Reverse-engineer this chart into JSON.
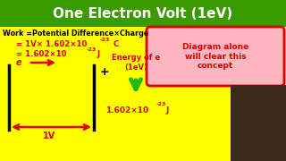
{
  "title": "One Electron Volt (1eV)",
  "title_bg": "#3a9a00",
  "title_color": "white",
  "body_bg": "#ffff00",
  "line1": "Work =Potential Difference×Charge",
  "line2_base": "= 1V× 1.602×10",
  "line2_exp": "-23",
  "line2_end": " C",
  "line3_base": "= 1.602×10",
  "line3_exp": "-23",
  "line3_end": "J",
  "label_e": "e",
  "label_energy": "Energy of e\n(1eV)",
  "label_1v": "1V",
  "label_joule_base": "1.602×10",
  "label_joule_exp": "-23",
  "label_joule_end": "J",
  "box_text": "Diagram alone\nwill clear this\nconcept",
  "box_bg": "#ffb6c1",
  "box_border": "#dd0000",
  "red": "#dd0000",
  "green_arrow": "#22bb00"
}
